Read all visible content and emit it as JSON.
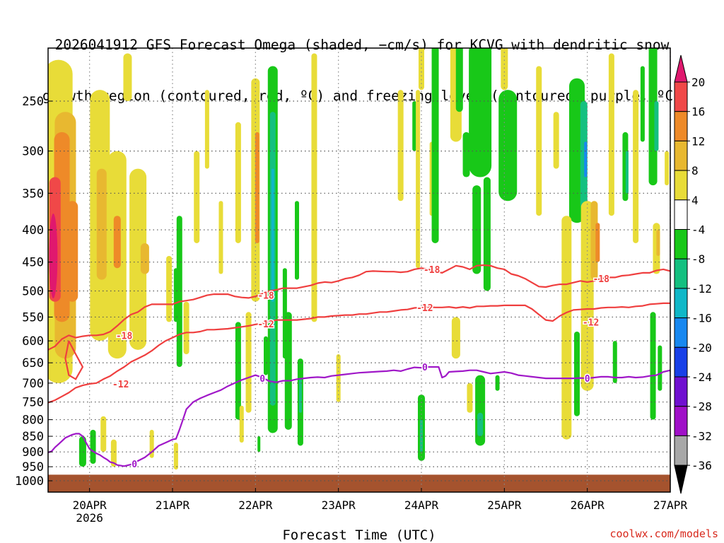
{
  "header": {
    "title_line1": "2026041912 GFS Forecast Omega (shaded, −cm/s) for KCVG with dendritic snow",
    "title_line2": "growth region (contoured, red, ºC) and freezing level (contoured, purple, ºC)"
  },
  "footer": {
    "credit": "coolwx.com/models"
  },
  "chart_data": {
    "type": "heatmap",
    "title": "2026041912 GFS Forecast Omega (shaded, −cm/s) for KCVG with dendritic snow growth region (contoured, red, ºC) and freezing level (contoured, purple, ºC)",
    "xlabel": "Forecast Time (UTC)",
    "ylabel": "",
    "y_scale": "log-pressure",
    "y_ticks": [
      250,
      300,
      350,
      400,
      450,
      500,
      550,
      600,
      650,
      700,
      750,
      800,
      850,
      900,
      950,
      1000
    ],
    "ylim": [
      1025,
      200
    ],
    "x_ticks": [
      {
        "label": "20APR",
        "sublabel": "2026",
        "hours": 12
      },
      {
        "label": "21APR",
        "sublabel": "",
        "hours": 36
      },
      {
        "label": "22APR",
        "sublabel": "",
        "hours": 60
      },
      {
        "label": "23APR",
        "sublabel": "",
        "hours": 84
      },
      {
        "label": "24APR",
        "sublabel": "",
        "hours": 108
      },
      {
        "label": "25APR",
        "sublabel": "",
        "hours": 132
      },
      {
        "label": "26APR",
        "sublabel": "",
        "hours": 156
      },
      {
        "label": "27APR",
        "sublabel": "",
        "hours": 180
      }
    ],
    "xlim_hours": [
      0,
      180
    ],
    "grid": true,
    "colorbar": {
      "levels": [
        20,
        16,
        12,
        8,
        4,
        -4,
        -8,
        -12,
        -16,
        -20,
        -24,
        -28,
        -32,
        -36
      ],
      "colors": [
        "#e0186e",
        "#f04848",
        "#ee8a28",
        "#e8b830",
        "#e8dc38",
        "#ffffff",
        "#18c818",
        "#14c080",
        "#10b8c8",
        "#1888f0",
        "#1840e8",
        "#7010d0",
        "#a010c8",
        "#a8a8a8",
        "#000000"
      ]
    },
    "contours": [
      {
        "name": "-18",
        "color": "#ef3f3f",
        "points": [
          [
            0,
            620
          ],
          [
            2,
            612
          ],
          [
            4,
            596
          ],
          [
            6,
            588
          ],
          [
            8,
            593
          ],
          [
            10,
            590
          ],
          [
            12,
            588
          ],
          [
            14,
            588
          ],
          [
            16,
            586
          ],
          [
            18,
            580
          ],
          [
            20,
            568
          ],
          [
            22,
            555
          ],
          [
            24,
            545
          ],
          [
            26,
            540
          ],
          [
            28,
            530
          ],
          [
            30,
            525
          ],
          [
            32,
            525
          ],
          [
            36,
            525
          ],
          [
            38,
            520
          ],
          [
            40,
            518
          ],
          [
            42,
            516
          ],
          [
            44,
            512
          ],
          [
            46,
            508
          ],
          [
            48,
            506
          ],
          [
            50,
            506
          ],
          [
            52,
            506
          ],
          [
            54,
            510
          ],
          [
            56,
            512
          ],
          [
            58,
            513
          ],
          [
            60,
            510
          ],
          [
            62,
            505
          ],
          [
            64,
            500
          ],
          [
            66,
            498
          ],
          [
            68,
            495
          ],
          [
            72,
            495
          ],
          [
            76,
            490
          ],
          [
            78,
            486
          ],
          [
            80,
            484
          ],
          [
            82,
            485
          ],
          [
            84,
            482
          ],
          [
            86,
            478
          ],
          [
            88,
            476
          ],
          [
            90,
            472
          ],
          [
            92,
            466
          ],
          [
            94,
            465
          ],
          [
            98,
            466
          ],
          [
            100,
            466
          ],
          [
            102,
            467
          ],
          [
            104,
            466
          ],
          [
            106,
            462
          ],
          [
            108,
            460
          ],
          [
            110,
            462
          ],
          [
            112,
            465
          ],
          [
            114,
            468
          ],
          [
            116,
            462
          ],
          [
            118,
            456
          ],
          [
            120,
            458
          ],
          [
            122,
            462
          ],
          [
            124,
            456
          ],
          [
            126,
            455
          ],
          [
            128,
            456
          ],
          [
            130,
            460
          ],
          [
            132,
            462
          ],
          [
            134,
            470
          ],
          [
            136,
            473
          ],
          [
            138,
            478
          ],
          [
            140,
            485
          ],
          [
            142,
            492
          ],
          [
            144,
            493
          ],
          [
            146,
            490
          ],
          [
            148,
            488
          ],
          [
            150,
            488
          ],
          [
            152,
            485
          ],
          [
            154,
            482
          ],
          [
            156,
            484
          ],
          [
            158,
            482
          ],
          [
            160,
            478
          ],
          [
            162,
            476
          ],
          [
            164,
            476
          ],
          [
            166,
            473
          ],
          [
            168,
            472
          ],
          [
            170,
            470
          ],
          [
            172,
            468
          ],
          [
            174,
            468
          ],
          [
            176,
            464
          ],
          [
            178,
            462
          ],
          [
            180,
            465
          ]
        ]
      },
      {
        "name": "-12",
        "color": "#ef3f3f",
        "points": [
          [
            0,
            752
          ],
          [
            2,
            745
          ],
          [
            4,
            735
          ],
          [
            6,
            725
          ],
          [
            8,
            712
          ],
          [
            10,
            706
          ],
          [
            12,
            702
          ],
          [
            14,
            700
          ],
          [
            16,
            690
          ],
          [
            18,
            682
          ],
          [
            20,
            670
          ],
          [
            22,
            660
          ],
          [
            24,
            648
          ],
          [
            26,
            640
          ],
          [
            28,
            632
          ],
          [
            30,
            622
          ],
          [
            32,
            610
          ],
          [
            34,
            600
          ],
          [
            36,
            593
          ],
          [
            38,
            586
          ],
          [
            40,
            582
          ],
          [
            42,
            582
          ],
          [
            44,
            580
          ],
          [
            46,
            576
          ],
          [
            48,
            576
          ],
          [
            50,
            575
          ],
          [
            52,
            574
          ],
          [
            54,
            572
          ],
          [
            56,
            570
          ],
          [
            58,
            568
          ],
          [
            60,
            565
          ],
          [
            62,
            563
          ],
          [
            64,
            560
          ],
          [
            66,
            556
          ],
          [
            68,
            556
          ],
          [
            72,
            556
          ],
          [
            76,
            553
          ],
          [
            78,
            550
          ],
          [
            80,
            550
          ],
          [
            82,
            548
          ],
          [
            84,
            547
          ],
          [
            86,
            546
          ],
          [
            88,
            546
          ],
          [
            90,
            544
          ],
          [
            92,
            544
          ],
          [
            94,
            542
          ],
          [
            96,
            540
          ],
          [
            98,
            540
          ],
          [
            100,
            538
          ],
          [
            102,
            536
          ],
          [
            104,
            535
          ],
          [
            106,
            532
          ],
          [
            108,
            531
          ],
          [
            110,
            530
          ],
          [
            112,
            531
          ],
          [
            114,
            531
          ],
          [
            116,
            530
          ],
          [
            118,
            532
          ],
          [
            120,
            530
          ],
          [
            122,
            532
          ],
          [
            124,
            529
          ],
          [
            126,
            529
          ],
          [
            128,
            528
          ],
          [
            130,
            528
          ],
          [
            132,
            527
          ],
          [
            134,
            527
          ],
          [
            136,
            527
          ],
          [
            138,
            527
          ],
          [
            140,
            534
          ],
          [
            142,
            545
          ],
          [
            144,
            556
          ],
          [
            146,
            558
          ],
          [
            148,
            548
          ],
          [
            150,
            541
          ],
          [
            152,
            536
          ],
          [
            154,
            535
          ],
          [
            156,
            534
          ],
          [
            158,
            534
          ],
          [
            160,
            532
          ],
          [
            162,
            531
          ],
          [
            164,
            531
          ],
          [
            166,
            530
          ],
          [
            168,
            531
          ],
          [
            170,
            529
          ],
          [
            172,
            528
          ],
          [
            174,
            525
          ],
          [
            176,
            524
          ],
          [
            178,
            523
          ],
          [
            180,
            523
          ]
        ]
      },
      {
        "name": "0",
        "color": "#a018c8",
        "points": [
          [
            0,
            902
          ],
          [
            1,
            898
          ],
          [
            2,
            885
          ],
          [
            3,
            875
          ],
          [
            4,
            865
          ],
          [
            5,
            855
          ],
          [
            6,
            850
          ],
          [
            7,
            845
          ],
          [
            8,
            842
          ],
          [
            9,
            842
          ],
          [
            10,
            850
          ],
          [
            11,
            870
          ],
          [
            12,
            890
          ],
          [
            13,
            898
          ],
          [
            14,
            905
          ],
          [
            15,
            910
          ],
          [
            16,
            918
          ],
          [
            17,
            925
          ],
          [
            18,
            934
          ],
          [
            19,
            937
          ],
          [
            20,
            944
          ],
          [
            22,
            948
          ],
          [
            24,
            942
          ],
          [
            26,
            930
          ],
          [
            28,
            918
          ],
          [
            30,
            900
          ],
          [
            32,
            880
          ],
          [
            34,
            870
          ],
          [
            36,
            860
          ],
          [
            37,
            858
          ],
          [
            38,
            830
          ],
          [
            39,
            800
          ],
          [
            40,
            770
          ],
          [
            42,
            750
          ],
          [
            44,
            740
          ],
          [
            46,
            732
          ],
          [
            48,
            725
          ],
          [
            50,
            718
          ],
          [
            52,
            708
          ],
          [
            54,
            700
          ],
          [
            56,
            692
          ],
          [
            58,
            686
          ],
          [
            60,
            680
          ],
          [
            62,
            686
          ],
          [
            64,
            695
          ],
          [
            66,
            698
          ],
          [
            68,
            694
          ],
          [
            70,
            694
          ],
          [
            72,
            690
          ],
          [
            74,
            688
          ],
          [
            76,
            686
          ],
          [
            78,
            685
          ],
          [
            80,
            686
          ],
          [
            82,
            682
          ],
          [
            84,
            680
          ],
          [
            86,
            678
          ],
          [
            88,
            676
          ],
          [
            90,
            674
          ],
          [
            92,
            673
          ],
          [
            96,
            671
          ],
          [
            98,
            670
          ],
          [
            100,
            668
          ],
          [
            102,
            670
          ],
          [
            104,
            665
          ],
          [
            106,
            661
          ],
          [
            108,
            662
          ],
          [
            110,
            660
          ],
          [
            112,
            660
          ],
          [
            113,
            660
          ],
          [
            114,
            686
          ],
          [
            115,
            682
          ],
          [
            116,
            672
          ],
          [
            118,
            671
          ],
          [
            120,
            670
          ],
          [
            122,
            668
          ],
          [
            124,
            668
          ],
          [
            126,
            672
          ],
          [
            128,
            676
          ],
          [
            130,
            674
          ],
          [
            132,
            672
          ],
          [
            134,
            675
          ],
          [
            136,
            680
          ],
          [
            138,
            682
          ],
          [
            140,
            684
          ],
          [
            142,
            686
          ],
          [
            144,
            688
          ],
          [
            146,
            688
          ],
          [
            148,
            688
          ],
          [
            150,
            688
          ],
          [
            152,
            688
          ],
          [
            154,
            687
          ],
          [
            156,
            688
          ],
          [
            158,
            686
          ],
          [
            160,
            684
          ],
          [
            162,
            684
          ],
          [
            164,
            686
          ],
          [
            166,
            686
          ],
          [
            168,
            684
          ],
          [
            170,
            686
          ],
          [
            172,
            685
          ],
          [
            174,
            682
          ],
          [
            176,
            680
          ],
          [
            178,
            672
          ],
          [
            180,
            668
          ]
        ]
      }
    ],
    "contour_labels": [
      {
        "text": "-18",
        "hours": 22,
        "p": 588
      },
      {
        "text": "-12",
        "hours": 21,
        "p": 702
      },
      {
        "text": "0",
        "hours": 25,
        "p": 940
      },
      {
        "text": "-18",
        "hours": 63,
        "p": 508
      },
      {
        "text": "-12",
        "hours": 63,
        "p": 564
      },
      {
        "text": "0",
        "hours": 62,
        "p": 688
      },
      {
        "text": "-18",
        "hours": 111,
        "p": 462
      },
      {
        "text": "-12",
        "hours": 109,
        "p": 531
      },
      {
        "text": "0",
        "hours": 109,
        "p": 660
      },
      {
        "text": "-18",
        "hours": 160,
        "p": 478
      },
      {
        "text": "-12",
        "hours": 157,
        "p": 560
      },
      {
        "text": "0",
        "hours": 156,
        "p": 688
      }
    ],
    "terrain": {
      "color": "#a5532e",
      "surface_p": 978
    }
  }
}
